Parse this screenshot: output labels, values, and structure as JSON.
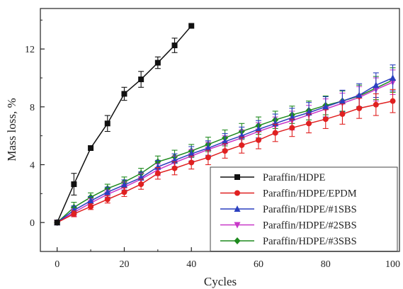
{
  "chart_data": {
    "type": "line",
    "title": "",
    "xlabel": "Cycles",
    "ylabel": "Mass loss, %",
    "xlim": [
      -5,
      102
    ],
    "ylim": [
      -2,
      14.8
    ],
    "xticks": [
      0,
      20,
      40,
      60,
      80,
      100
    ],
    "yticks": [
      0,
      4,
      8,
      12
    ],
    "legend_position": "bottom-right",
    "grid": false,
    "series": [
      {
        "name": "Paraffin/HDPE",
        "color": "#111111",
        "marker": "square",
        "x": [
          0,
          5,
          10,
          15,
          20,
          25,
          30,
          35,
          40
        ],
        "y": [
          0,
          2.65,
          5.15,
          6.85,
          8.9,
          9.9,
          11.05,
          12.25,
          13.6
        ],
        "err": [
          0,
          0.75,
          0,
          0.55,
          0.45,
          0.55,
          0.4,
          0.5,
          0
        ]
      },
      {
        "name": "Paraffin/HDPE/EPDM",
        "color": "#e02020",
        "marker": "circle",
        "x": [
          0,
          5,
          10,
          15,
          20,
          25,
          30,
          35,
          40,
          45,
          50,
          55,
          60,
          65,
          70,
          75,
          80,
          85,
          90,
          95,
          100
        ],
        "y": [
          0,
          0.6,
          1.1,
          1.6,
          2.1,
          2.65,
          3.4,
          3.75,
          4.15,
          4.5,
          4.95,
          5.35,
          5.7,
          6.2,
          6.55,
          6.85,
          7.15,
          7.5,
          7.9,
          8.15,
          8.4
        ],
        "err": [
          0,
          0.2,
          0.2,
          0.25,
          0.3,
          0.35,
          0.4,
          0.45,
          0.45,
          0.5,
          0.5,
          0.55,
          0.6,
          0.6,
          0.6,
          0.65,
          0.65,
          0.7,
          0.7,
          0.75,
          0.8
        ]
      },
      {
        "name": "Paraffin/HDPE/#1SBS",
        "color": "#2a3fbf",
        "marker": "triangle-up",
        "x": [
          0,
          5,
          10,
          15,
          20,
          25,
          30,
          35,
          40,
          45,
          50,
          55,
          60,
          65,
          70,
          75,
          80,
          85,
          90,
          95,
          100
        ],
        "y": [
          0,
          0.85,
          1.5,
          2.1,
          2.6,
          3.1,
          3.85,
          4.3,
          4.75,
          5.15,
          5.6,
          6.0,
          6.45,
          6.85,
          7.25,
          7.6,
          8.0,
          8.4,
          8.8,
          9.5,
          10.0
        ],
        "err": [
          0,
          0.3,
          0.3,
          0.35,
          0.35,
          0.4,
          0.45,
          0.45,
          0.5,
          0.5,
          0.55,
          0.6,
          0.6,
          0.65,
          0.65,
          0.7,
          0.7,
          0.75,
          0.8,
          0.85,
          0.9
        ]
      },
      {
        "name": "Paraffin/HDPE/#2SBS",
        "color": "#c838c8",
        "marker": "triangle-down",
        "x": [
          0,
          5,
          10,
          15,
          20,
          25,
          30,
          35,
          40,
          45,
          50,
          55,
          60,
          65,
          70,
          75,
          80,
          85,
          90,
          95,
          100
        ],
        "y": [
          0,
          0.7,
          1.35,
          1.95,
          2.45,
          3.0,
          3.65,
          4.15,
          4.6,
          5.05,
          5.45,
          5.85,
          6.3,
          6.7,
          7.05,
          7.45,
          7.85,
          8.25,
          8.65,
          9.2,
          9.7
        ],
        "err": [
          0,
          0.25,
          0.3,
          0.3,
          0.35,
          0.4,
          0.4,
          0.45,
          0.45,
          0.5,
          0.55,
          0.55,
          0.6,
          0.6,
          0.65,
          0.65,
          0.7,
          0.7,
          0.75,
          0.8,
          0.85
        ]
      },
      {
        "name": "Paraffin/HDPE/#3SBS",
        "color": "#1e8a1e",
        "marker": "diamond",
        "x": [
          0,
          5,
          10,
          15,
          20,
          25,
          30,
          35,
          40,
          45,
          50,
          55,
          60,
          65,
          70,
          75,
          80,
          85,
          90,
          95,
          100
        ],
        "y": [
          0,
          1.05,
          1.75,
          2.35,
          2.8,
          3.4,
          4.2,
          4.55,
          4.95,
          5.4,
          5.85,
          6.3,
          6.7,
          7.1,
          7.45,
          7.75,
          8.1,
          8.4,
          8.75,
          9.3,
          9.85
        ],
        "err": [
          0,
          0.35,
          0.3,
          0.3,
          0.35,
          0.35,
          0.4,
          0.45,
          0.45,
          0.5,
          0.55,
          0.55,
          0.6,
          0.6,
          0.6,
          0.65,
          0.65,
          0.7,
          0.75,
          0.8,
          0.85
        ]
      }
    ]
  }
}
